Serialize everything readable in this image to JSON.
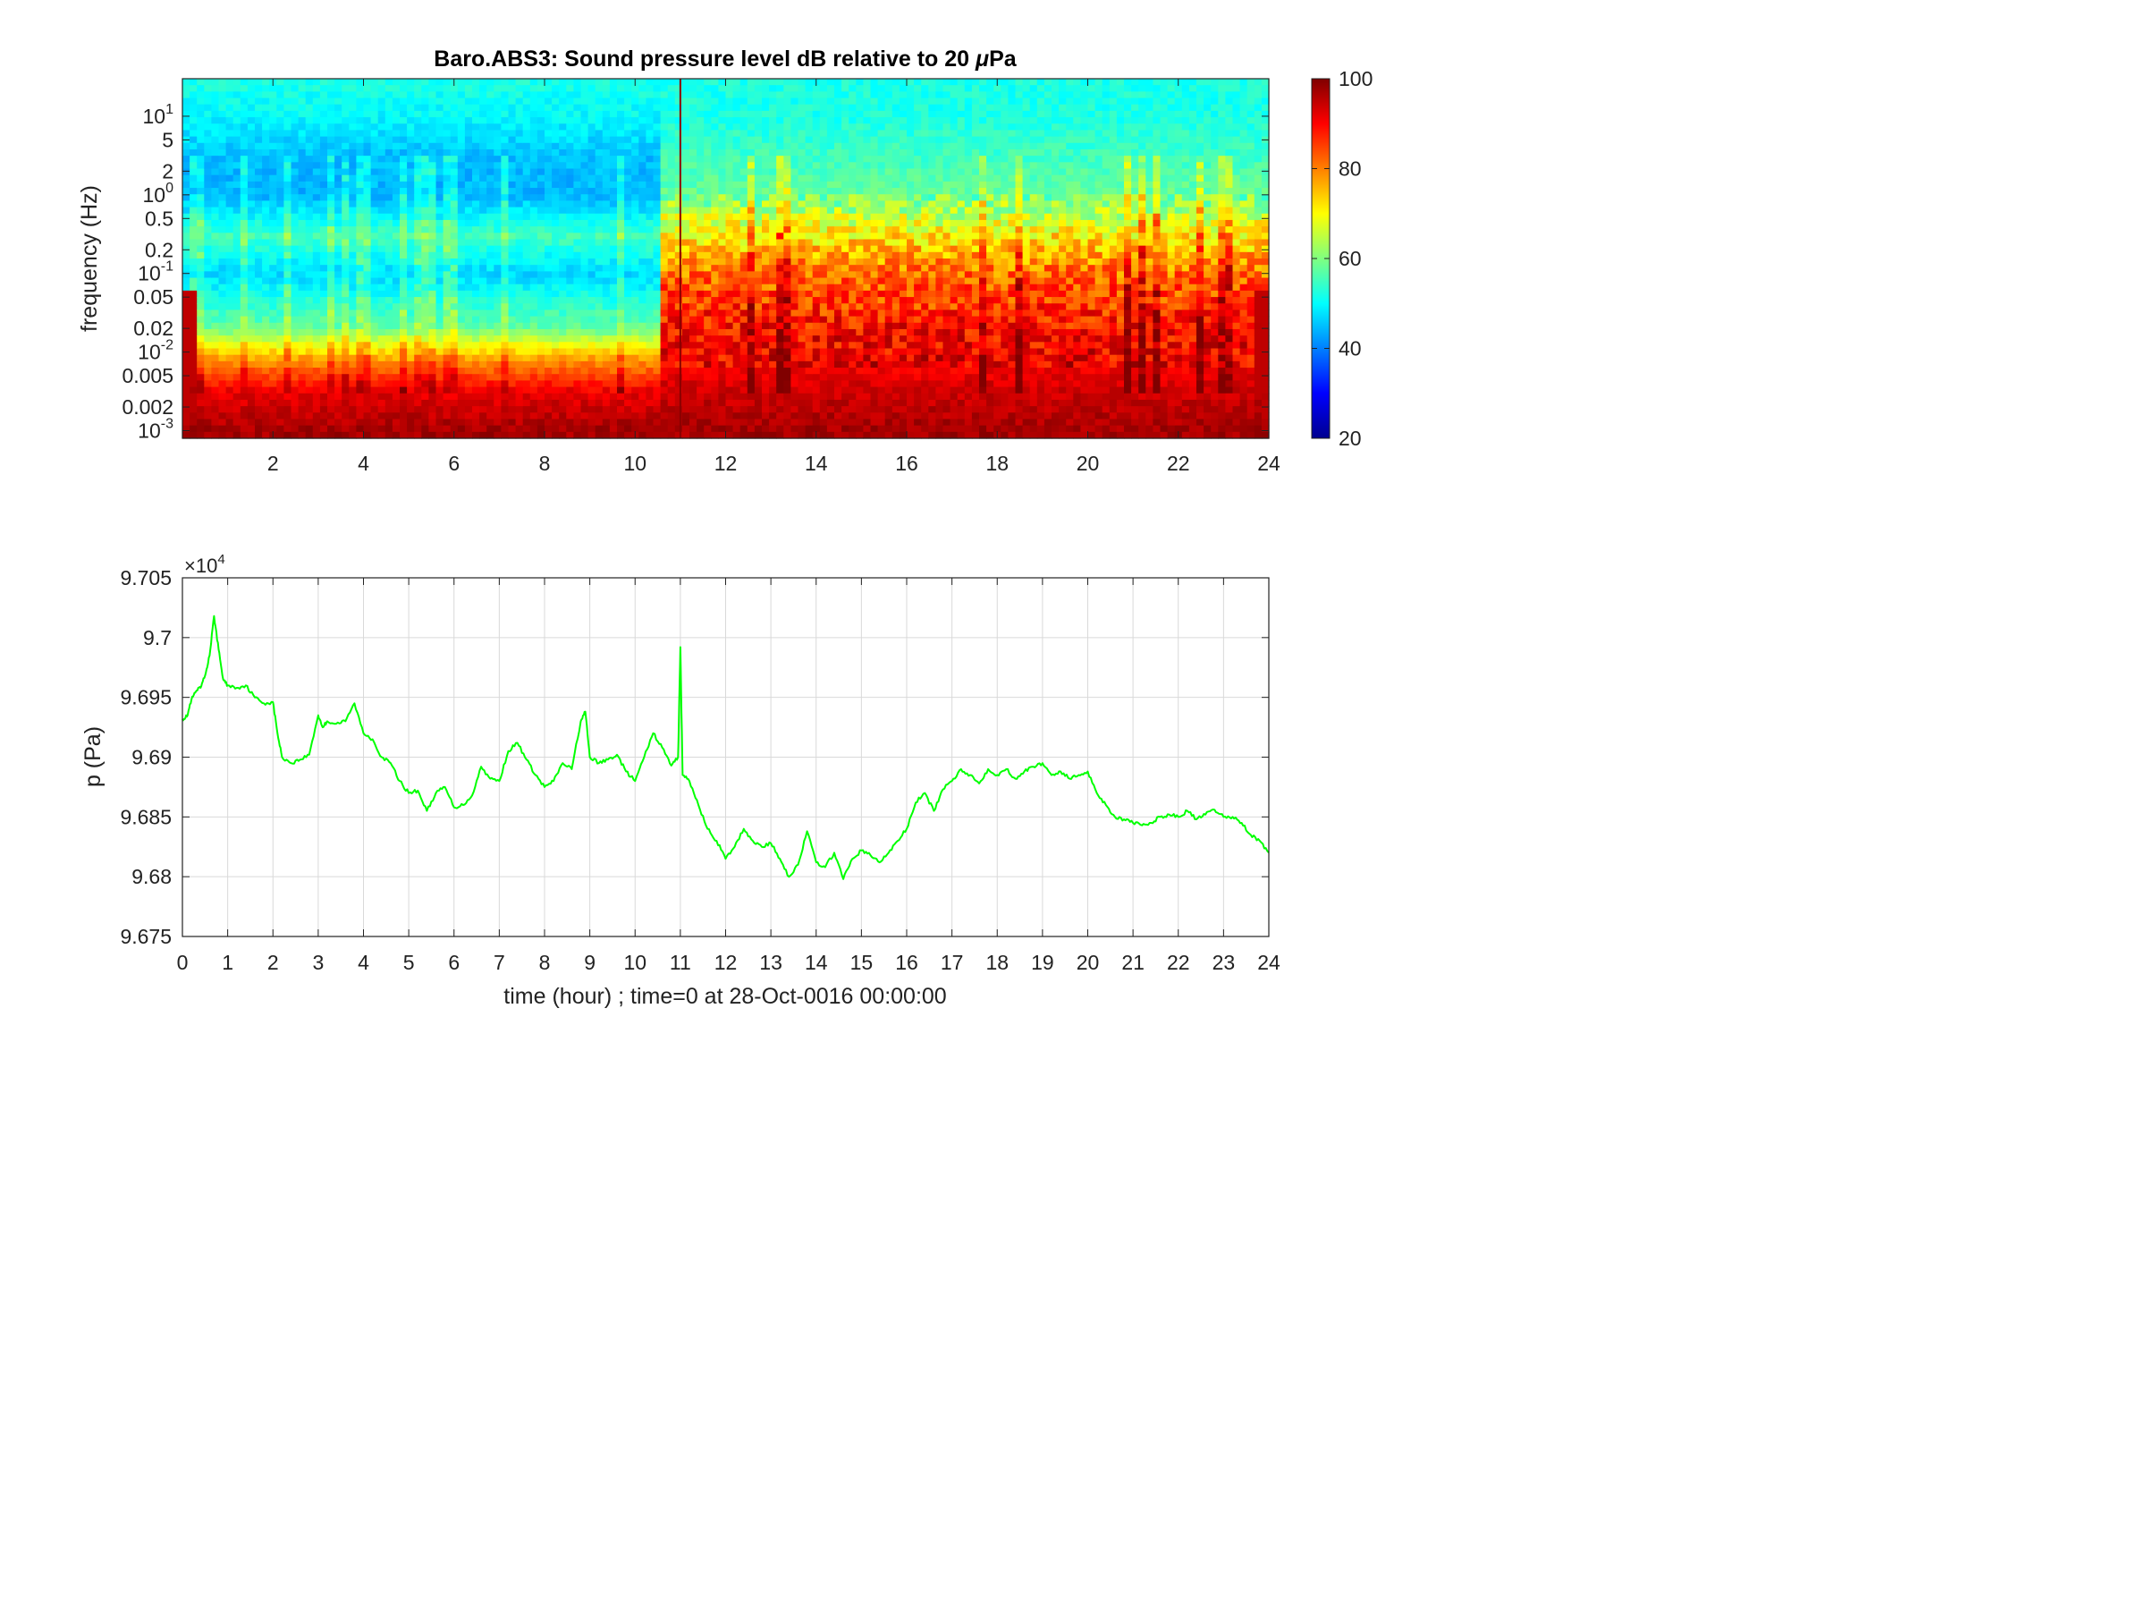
{
  "chart_data": [
    {
      "type": "heatmap",
      "title_pre": "Baro.ABS3: Sound pressure level dB relative to 20 ",
      "title_mu": "μ",
      "title_post": "Pa",
      "ylabel": "frequency (Hz)",
      "yscale": "log",
      "ylim": [
        0.0008,
        30
      ],
      "xlim": [
        0,
        24
      ],
      "xticks": [
        2,
        4,
        6,
        8,
        10,
        12,
        14,
        16,
        18,
        20,
        22,
        24
      ],
      "yticks": [
        {
          "value": 10,
          "base": "10",
          "exp": "1"
        },
        {
          "value": 5,
          "label": "5"
        },
        {
          "value": 2,
          "label": "2"
        },
        {
          "value": 1,
          "base": "10",
          "exp": "0"
        },
        {
          "value": 0.5,
          "label": "0.5"
        },
        {
          "value": 0.2,
          "label": "0.2"
        },
        {
          "value": 0.1,
          "base": "10",
          "exp": "-1"
        },
        {
          "value": 0.05,
          "label": "0.05"
        },
        {
          "value": 0.02,
          "label": "0.02"
        },
        {
          "value": 0.01,
          "base": "10",
          "exp": "-2"
        },
        {
          "value": 0.005,
          "label": "0.005"
        },
        {
          "value": 0.002,
          "label": "0.002"
        },
        {
          "value": 0.001,
          "base": "10",
          "exp": "-3"
        }
      ],
      "colormap": "jet",
      "colorbar": {
        "min": 20,
        "max": 100,
        "ticks": [
          20,
          40,
          60,
          80,
          100
        ]
      },
      "spl_profile_db": [
        {
          "freq": 30,
          "day_quiet": 52,
          "storm": 52
        },
        {
          "freq": 10,
          "day_quiet": 50,
          "storm": 52
        },
        {
          "freq": 3,
          "day_quiet": 45,
          "storm": 55
        },
        {
          "freq": 1,
          "day_quiet": 44,
          "storm": 58
        },
        {
          "freq": 0.3,
          "day_quiet": 55,
          "storm": 70
        },
        {
          "freq": 0.1,
          "day_quiet": 47,
          "storm": 80
        },
        {
          "freq": 0.02,
          "day_quiet": 58,
          "storm": 88
        },
        {
          "freq": 0.008,
          "day_quiet": 78,
          "storm": 90
        },
        {
          "freq": 0.003,
          "day_quiet": 92,
          "storm": 94
        },
        {
          "freq": 0.001,
          "day_quiet": 97,
          "storm": 97
        }
      ],
      "transition_hour": 10.5,
      "spike_hour": 11
    },
    {
      "type": "line",
      "ylabel": "p (Pa)",
      "xlabel": "time (hour) ; time=0 at 28-Oct-0016 00:00:00",
      "xlim": [
        0,
        24
      ],
      "ylim": [
        96750,
        97050
      ],
      "xticks": [
        0,
        1,
        2,
        3,
        4,
        5,
        6,
        7,
        8,
        9,
        10,
        11,
        12,
        13,
        14,
        15,
        16,
        17,
        18,
        19,
        20,
        21,
        22,
        23,
        24
      ],
      "yticks": [
        {
          "value": 96750,
          "label": "9.675"
        },
        {
          "value": 96800,
          "label": "9.68"
        },
        {
          "value": 96850,
          "label": "9.685"
        },
        {
          "value": 96900,
          "label": "9.69"
        },
        {
          "value": 96950,
          "label": "9.695"
        },
        {
          "value": 97000,
          "label": "9.7"
        },
        {
          "value": 97050,
          "label": "9.705"
        }
      ],
      "multiplier_prefix": "×10",
      "multiplier_exp": "4",
      "grid": true,
      "series": [
        {
          "color": "#00ff00",
          "x": [
            0,
            0.1,
            0.2,
            0.3,
            0.4,
            0.5,
            0.6,
            0.7,
            0.8,
            0.9,
            1.0,
            1.2,
            1.4,
            1.6,
            1.8,
            2.0,
            2.1,
            2.2,
            2.4,
            2.6,
            2.8,
            3.0,
            3.1,
            3.2,
            3.4,
            3.6,
            3.8,
            4.0,
            4.2,
            4.4,
            4.6,
            4.8,
            5.0,
            5.2,
            5.4,
            5.6,
            5.8,
            6.0,
            6.2,
            6.4,
            6.6,
            6.8,
            7.0,
            7.2,
            7.4,
            7.6,
            7.8,
            8.0,
            8.2,
            8.4,
            8.6,
            8.8,
            8.9,
            9.0,
            9.2,
            9.4,
            9.6,
            9.8,
            10.0,
            10.2,
            10.4,
            10.6,
            10.8,
            10.95,
            11.0,
            11.05,
            11.2,
            11.4,
            11.6,
            11.8,
            12.0,
            12.2,
            12.4,
            12.6,
            12.8,
            13.0,
            13.2,
            13.4,
            13.6,
            13.8,
            14.0,
            14.2,
            14.4,
            14.6,
            14.8,
            15.0,
            15.2,
            15.4,
            15.6,
            15.8,
            16.0,
            16.2,
            16.4,
            16.6,
            16.8,
            17.0,
            17.2,
            17.4,
            17.6,
            17.8,
            18.0,
            18.2,
            18.4,
            18.6,
            18.8,
            19.0,
            19.2,
            19.4,
            19.6,
            19.8,
            20.0,
            20.2,
            20.4,
            20.6,
            20.8,
            21.0,
            21.2,
            21.4,
            21.6,
            21.8,
            22.0,
            22.2,
            22.4,
            22.6,
            22.8,
            23.0,
            23.2,
            23.4,
            23.6,
            23.8,
            24.0
          ],
          "y": [
            96932,
            96934,
            96948,
            96955,
            96958,
            96968,
            96985,
            97018,
            96990,
            96965,
            96960,
            96958,
            96960,
            96950,
            96945,
            96946,
            96920,
            96900,
            96895,
            96898,
            96902,
            96935,
            96925,
            96930,
            96928,
            96930,
            96945,
            96920,
            96915,
            96900,
            96895,
            96880,
            96870,
            96872,
            96855,
            96870,
            96875,
            96858,
            96860,
            96868,
            96892,
            96882,
            96880,
            96905,
            96912,
            96898,
            96885,
            96875,
            96880,
            96895,
            96890,
            96930,
            96938,
            96900,
            96895,
            96898,
            96902,
            96888,
            96880,
            96900,
            96920,
            96908,
            96893,
            96900,
            96992,
            96885,
            96880,
            96860,
            96840,
            96830,
            96815,
            96825,
            96840,
            96830,
            96825,
            96828,
            96815,
            96800,
            96810,
            96838,
            96812,
            96808,
            96820,
            96798,
            96815,
            96822,
            96818,
            96812,
            96820,
            96830,
            96840,
            96862,
            96870,
            96855,
            96873,
            96880,
            96890,
            96885,
            96878,
            96890,
            96885,
            96890,
            96882,
            96888,
            96892,
            96895,
            96885,
            96888,
            96882,
            96885,
            96888,
            96870,
            96860,
            96850,
            96848,
            96845,
            96843,
            96845,
            96850,
            96852,
            96850,
            96855,
            96848,
            96852,
            96856,
            96850,
            96850,
            96845,
            96835,
            96830,
            96820
          ]
        }
      ]
    }
  ]
}
